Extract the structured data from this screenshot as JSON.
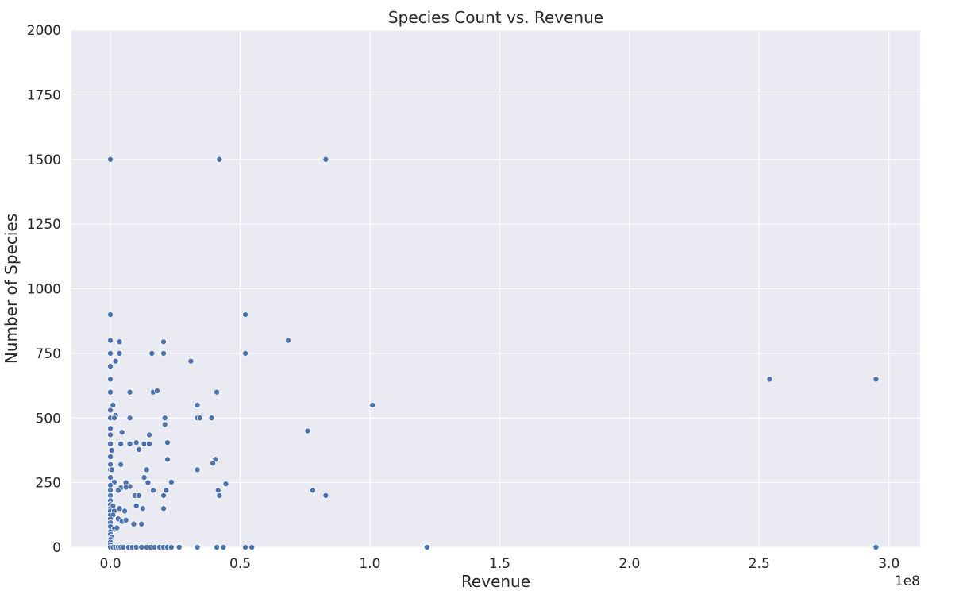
{
  "chart_data": {
    "type": "scatter",
    "title": "Species Count vs. Revenue",
    "xlabel": "Revenue",
    "ylabel": "Number of Species",
    "x_offset_label": "1e8",
    "xlim": [
      -0.15,
      3.12
    ],
    "ylim": [
      0,
      2000
    ],
    "x_ticks": [
      0.0,
      0.5,
      1.0,
      1.5,
      2.0,
      2.5,
      3.0
    ],
    "x_tick_labels": [
      "0.0",
      "0.5",
      "1.0",
      "1.5",
      "2.0",
      "2.5",
      "3.0"
    ],
    "y_ticks": [
      0,
      250,
      500,
      750,
      1000,
      1250,
      1500,
      1750,
      2000
    ],
    "y_tick_labels": [
      "0",
      "250",
      "500",
      "750",
      "1000",
      "1250",
      "1500",
      "1750",
      "2000"
    ],
    "grid": true,
    "background_color": "#eaeaf2",
    "grid_color": "#ffffff",
    "marker_color": "#4c72b0",
    "x_unit_note": "x values are in units of 1e8",
    "points": [
      {
        "x": 0.0,
        "y": 1500
      },
      {
        "x": 0.42,
        "y": 1500
      },
      {
        "x": 0.83,
        "y": 1500
      },
      {
        "x": 0.0,
        "y": 900
      },
      {
        "x": 0.52,
        "y": 900
      },
      {
        "x": 0.0,
        "y": 800
      },
      {
        "x": 0.035,
        "y": 795
      },
      {
        "x": 0.205,
        "y": 795
      },
      {
        "x": 0.685,
        "y": 800
      },
      {
        "x": 0.0,
        "y": 750
      },
      {
        "x": 0.035,
        "y": 750
      },
      {
        "x": 0.16,
        "y": 750
      },
      {
        "x": 0.205,
        "y": 750
      },
      {
        "x": 0.52,
        "y": 750
      },
      {
        "x": 0.02,
        "y": 720
      },
      {
        "x": 0.31,
        "y": 720
      },
      {
        "x": 0.0,
        "y": 700
      },
      {
        "x": 2.54,
        "y": 650
      },
      {
        "x": 2.95,
        "y": 650
      },
      {
        "x": 0.0,
        "y": 650
      },
      {
        "x": 0.0,
        "y": 600
      },
      {
        "x": 0.075,
        "y": 600
      },
      {
        "x": 0.165,
        "y": 600
      },
      {
        "x": 0.18,
        "y": 605
      },
      {
        "x": 0.41,
        "y": 600
      },
      {
        "x": 1.01,
        "y": 550
      },
      {
        "x": 0.01,
        "y": 550
      },
      {
        "x": 0.335,
        "y": 550
      },
      {
        "x": 0.0,
        "y": 530
      },
      {
        "x": 0.02,
        "y": 510
      },
      {
        "x": 0.0,
        "y": 500
      },
      {
        "x": 0.015,
        "y": 500
      },
      {
        "x": 0.075,
        "y": 500
      },
      {
        "x": 0.21,
        "y": 500
      },
      {
        "x": 0.335,
        "y": 500
      },
      {
        "x": 0.345,
        "y": 500
      },
      {
        "x": 0.39,
        "y": 500
      },
      {
        "x": 0.21,
        "y": 475
      },
      {
        "x": 0.0,
        "y": 460
      },
      {
        "x": 0.045,
        "y": 445
      },
      {
        "x": 0.76,
        "y": 450
      },
      {
        "x": 0.0,
        "y": 435
      },
      {
        "x": 0.15,
        "y": 435
      },
      {
        "x": 0.1,
        "y": 405
      },
      {
        "x": 0.22,
        "y": 405
      },
      {
        "x": 0.0,
        "y": 400
      },
      {
        "x": 0.04,
        "y": 400
      },
      {
        "x": 0.075,
        "y": 400
      },
      {
        "x": 0.13,
        "y": 400
      },
      {
        "x": 0.15,
        "y": 400
      },
      {
        "x": 0.11,
        "y": 378
      },
      {
        "x": 0.005,
        "y": 375
      },
      {
        "x": 0.0,
        "y": 350
      },
      {
        "x": 0.22,
        "y": 340
      },
      {
        "x": 0.405,
        "y": 340
      },
      {
        "x": 0.395,
        "y": 325
      },
      {
        "x": 0.0,
        "y": 320
      },
      {
        "x": 0.04,
        "y": 320
      },
      {
        "x": 0.0,
        "y": 300
      },
      {
        "x": 0.005,
        "y": 300
      },
      {
        "x": 0.14,
        "y": 300
      },
      {
        "x": 0.335,
        "y": 300
      },
      {
        "x": 0.13,
        "y": 270
      },
      {
        "x": 0.0,
        "y": 270
      },
      {
        "x": 0.015,
        "y": 252
      },
      {
        "x": 0.06,
        "y": 250
      },
      {
        "x": 0.145,
        "y": 250
      },
      {
        "x": 0.235,
        "y": 252
      },
      {
        "x": 0.445,
        "y": 245
      },
      {
        "x": 0.0,
        "y": 240
      },
      {
        "x": 0.075,
        "y": 235
      },
      {
        "x": 0.04,
        "y": 230
      },
      {
        "x": 0.06,
        "y": 232
      },
      {
        "x": 0.0,
        "y": 220
      },
      {
        "x": 0.03,
        "y": 220
      },
      {
        "x": 0.165,
        "y": 220
      },
      {
        "x": 0.215,
        "y": 220
      },
      {
        "x": 0.415,
        "y": 220
      },
      {
        "x": 0.78,
        "y": 220
      },
      {
        "x": 0.0,
        "y": 200
      },
      {
        "x": 0.095,
        "y": 200
      },
      {
        "x": 0.11,
        "y": 200
      },
      {
        "x": 0.205,
        "y": 200
      },
      {
        "x": 0.42,
        "y": 200
      },
      {
        "x": 0.83,
        "y": 200
      },
      {
        "x": 0.0,
        "y": 180
      },
      {
        "x": 0.0,
        "y": 165
      },
      {
        "x": 0.0,
        "y": 150
      },
      {
        "x": 0.01,
        "y": 160
      },
      {
        "x": 0.035,
        "y": 150
      },
      {
        "x": 0.1,
        "y": 160
      },
      {
        "x": 0.125,
        "y": 150
      },
      {
        "x": 0.205,
        "y": 150
      },
      {
        "x": 0.0,
        "y": 140
      },
      {
        "x": 0.015,
        "y": 140
      },
      {
        "x": 0.055,
        "y": 140
      },
      {
        "x": 0.0,
        "y": 125
      },
      {
        "x": 0.01,
        "y": 125
      },
      {
        "x": 0.0,
        "y": 110
      },
      {
        "x": 0.03,
        "y": 110
      },
      {
        "x": 0.045,
        "y": 100
      },
      {
        "x": 0.06,
        "y": 105
      },
      {
        "x": 0.0,
        "y": 95
      },
      {
        "x": 0.09,
        "y": 90
      },
      {
        "x": 0.12,
        "y": 90
      },
      {
        "x": 0.0,
        "y": 80
      },
      {
        "x": 0.015,
        "y": 70
      },
      {
        "x": 0.025,
        "y": 75
      },
      {
        "x": 0.0,
        "y": 60
      },
      {
        "x": 0.0,
        "y": 50
      },
      {
        "x": 0.005,
        "y": 40
      },
      {
        "x": 0.0,
        "y": 30
      },
      {
        "x": 0.0,
        "y": 20
      },
      {
        "x": 0.0,
        "y": 10
      },
      {
        "x": 0.0,
        "y": 0
      },
      {
        "x": 0.01,
        "y": 0
      },
      {
        "x": 0.02,
        "y": 0
      },
      {
        "x": 0.03,
        "y": 0
      },
      {
        "x": 0.04,
        "y": 0
      },
      {
        "x": 0.05,
        "y": 0
      },
      {
        "x": 0.07,
        "y": 0
      },
      {
        "x": 0.085,
        "y": 0
      },
      {
        "x": 0.1,
        "y": 0
      },
      {
        "x": 0.12,
        "y": 0
      },
      {
        "x": 0.14,
        "y": 0
      },
      {
        "x": 0.155,
        "y": 0
      },
      {
        "x": 0.17,
        "y": 0
      },
      {
        "x": 0.19,
        "y": 0
      },
      {
        "x": 0.205,
        "y": 0
      },
      {
        "x": 0.22,
        "y": 0
      },
      {
        "x": 0.235,
        "y": 0
      },
      {
        "x": 0.265,
        "y": 0
      },
      {
        "x": 0.335,
        "y": 0
      },
      {
        "x": 0.41,
        "y": 0
      },
      {
        "x": 0.435,
        "y": 0
      },
      {
        "x": 0.52,
        "y": 0
      },
      {
        "x": 0.545,
        "y": 0
      },
      {
        "x": 1.22,
        "y": 0
      },
      {
        "x": 2.95,
        "y": 0
      }
    ]
  }
}
